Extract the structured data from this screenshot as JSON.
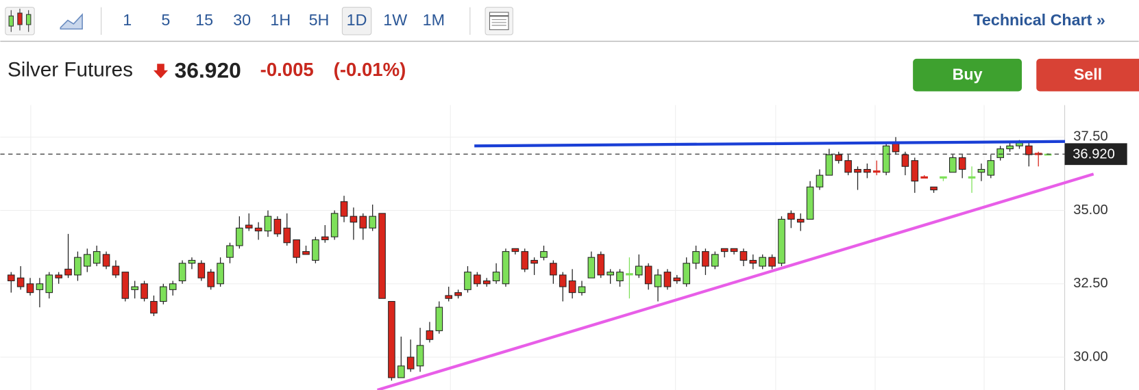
{
  "toolbar": {
    "intervals": [
      "1",
      "5",
      "15",
      "30",
      "1H",
      "5H",
      "1D",
      "1W",
      "1M"
    ],
    "active_interval_index": 6,
    "link": "Technical Chart »"
  },
  "quote": {
    "name": "Silver Futures",
    "price": "36.920",
    "change": "-0.005",
    "change_pct": "(-0.01%)"
  },
  "buttons": [
    "Buy",
    "Sell"
  ],
  "chart_data": {
    "type": "candlestick",
    "up_color": "#7ee05a",
    "down_color": "#d9261c",
    "ylim": [
      28.88,
      38.59
    ],
    "yticks": [
      {
        "value": 30,
        "label": "30.00"
      },
      {
        "value": 32.5,
        "label": "32.50"
      },
      {
        "value": 35,
        "label": "35.00"
      },
      {
        "value": 37.5,
        "label": "37.50"
      }
    ],
    "grid": true,
    "last_price": 36.92,
    "last_price_label": "36.920",
    "open": [
      32.8,
      32.7,
      32.5,
      32.3,
      32.2,
      32.8,
      33.0,
      32.8,
      33.1,
      33.2,
      33.5,
      33.1,
      32.9,
      32.3,
      32.5,
      31.9,
      31.9,
      32.3,
      32.6,
      33.2,
      33.2,
      32.9,
      32.5,
      33.4,
      33.8,
      34.5,
      34.4,
      34.3,
      34.7,
      34.4,
      34.0,
      33.6,
      33.3,
      34.1,
      34.1,
      35.3,
      34.8,
      34.8,
      34.4,
      34.9,
      31.9,
      29.3,
      30.0,
      29.7,
      30.9,
      30.9,
      32.1,
      32.2,
      32.3,
      32.8,
      32.6,
      32.6,
      32.5,
      33.7,
      33.6,
      33.3,
      33.4,
      33.2,
      32.8,
      32.6,
      32.2,
      32.7,
      33.5,
      32.8,
      32.6,
      32.8,
      32.8,
      33.1,
      32.4,
      32.9,
      32.7,
      32.5,
      33.2,
      33.6,
      33.1,
      33.7,
      33.7,
      33.6,
      33.3,
      33.1,
      33.4,
      33.2,
      34.9,
      34.7,
      34.7,
      35.8,
      36.2,
      36.9,
      36.7,
      36.4,
      36.4,
      36.35,
      36.3,
      37.3,
      36.9,
      36.7,
      36.15,
      35.8,
      36.1,
      36.3,
      36.8,
      36.1,
      36.3,
      36.2,
      36.8,
      37.1,
      37.2,
      37.2,
      36.95,
      36.9
    ],
    "high": [
      32.9,
      33.1,
      32.7,
      32.7,
      32.9,
      32.9,
      34.2,
      33.6,
      33.7,
      33.8,
      33.6,
      33.3,
      32.9,
      32.6,
      32.6,
      32.1,
      32.5,
      32.6,
      33.3,
      33.4,
      33.3,
      33.0,
      33.4,
      33.9,
      34.8,
      34.9,
      34.6,
      35.0,
      34.8,
      34.9,
      34.0,
      33.8,
      34.1,
      34.5,
      35.0,
      35.5,
      35.1,
      34.9,
      35.2,
      34.9,
      31.9,
      30.7,
      30.6,
      31.0,
      31.2,
      31.9,
      32.4,
      32.3,
      33.1,
      32.9,
      32.7,
      33.2,
      33.7,
      33.7,
      33.7,
      33.4,
      33.8,
      33.3,
      32.9,
      33.0,
      32.6,
      33.6,
      33.6,
      33.0,
      33.0,
      33.4,
      33.5,
      33.2,
      33.0,
      33.0,
      32.8,
      33.4,
      33.8,
      33.7,
      33.6,
      33.7,
      33.7,
      33.7,
      33.5,
      33.5,
      33.5,
      34.8,
      35.0,
      34.9,
      36.0,
      36.4,
      37.1,
      37.0,
      36.9,
      36.5,
      36.6,
      36.7,
      37.3,
      37.5,
      37.0,
      36.8,
      36.2,
      35.8,
      36.15,
      36.9,
      36.9,
      36.5,
      36.6,
      36.9,
      37.2,
      37.3,
      37.4,
      37.3,
      37.0,
      36.95
    ],
    "low": [
      32.2,
      32.3,
      32.1,
      31.7,
      32.0,
      32.5,
      32.7,
      32.6,
      32.9,
      33.1,
      33.0,
      32.7,
      31.9,
      32.0,
      31.9,
      31.4,
      31.8,
      32.1,
      32.5,
      33.0,
      32.6,
      32.3,
      32.4,
      33.2,
      33.7,
      34.3,
      34.0,
      34.1,
      34.1,
      33.8,
      33.2,
      33.5,
      33.2,
      33.9,
      34.0,
      34.6,
      34.0,
      34.0,
      34.3,
      32.0,
      29.2,
      29.3,
      29.5,
      29.5,
      30.5,
      30.8,
      31.9,
      32.0,
      32.2,
      32.4,
      32.4,
      32.5,
      32.4,
      33.5,
      32.9,
      32.8,
      33.3,
      32.5,
      31.9,
      32.0,
      32.1,
      32.7,
      32.7,
      32.5,
      32.4,
      32.0,
      32.7,
      32.3,
      31.9,
      32.3,
      32.5,
      32.4,
      33.0,
      32.8,
      33.0,
      33.4,
      33.5,
      33.1,
      33.0,
      33.0,
      33.0,
      33.1,
      34.4,
      34.3,
      34.7,
      35.7,
      36.2,
      36.6,
      36.2,
      35.7,
      36.1,
      36.2,
      36.2,
      36.9,
      36.2,
      35.6,
      36.1,
      35.6,
      36.0,
      36.3,
      36.1,
      35.6,
      36.0,
      36.1,
      36.7,
      37.0,
      37.1,
      36.5,
      36.5,
      36.9
    ],
    "close": [
      32.6,
      32.4,
      32.2,
      32.5,
      32.8,
      32.7,
      32.8,
      33.4,
      33.5,
      33.6,
      33.1,
      32.8,
      32.0,
      32.4,
      32.0,
      31.5,
      32.4,
      32.5,
      33.2,
      33.3,
      32.7,
      32.4,
      33.2,
      33.8,
      34.4,
      34.4,
      34.3,
      34.8,
      34.2,
      33.9,
      33.4,
      33.5,
      34.0,
      34.0,
      34.9,
      34.8,
      34.6,
      34.4,
      34.8,
      32.0,
      29.3,
      29.7,
      29.6,
      30.4,
      30.6,
      31.7,
      32.0,
      32.1,
      32.9,
      32.5,
      32.5,
      32.9,
      33.6,
      33.6,
      33.0,
      33.2,
      33.6,
      32.8,
      32.4,
      32.2,
      32.4,
      33.4,
      32.8,
      32.9,
      32.9,
      32.85,
      33.1,
      32.5,
      32.8,
      32.4,
      32.6,
      33.2,
      33.6,
      33.1,
      33.5,
      33.6,
      33.6,
      33.3,
      33.2,
      33.4,
      33.1,
      34.7,
      34.7,
      34.6,
      35.8,
      36.2,
      36.9,
      36.7,
      36.3,
      36.3,
      36.3,
      36.3,
      37.2,
      37.0,
      36.5,
      36.0,
      36.1,
      35.7,
      36.15,
      36.8,
      36.4,
      36.15,
      36.4,
      36.7,
      37.1,
      37.2,
      37.3,
      36.9,
      36.9,
      36.92
    ],
    "trendlines": [
      {
        "color": "#1a3fd6",
        "start": {
          "x": 48.7,
          "y": 37.2
        },
        "end": {
          "x": 110.8,
          "y": 37.35
        }
      },
      {
        "color": "#e85ee8",
        "start": {
          "x": 38.5,
          "y": 28.88
        },
        "end": {
          "x": 113.8,
          "y": 36.24
        }
      }
    ]
  }
}
